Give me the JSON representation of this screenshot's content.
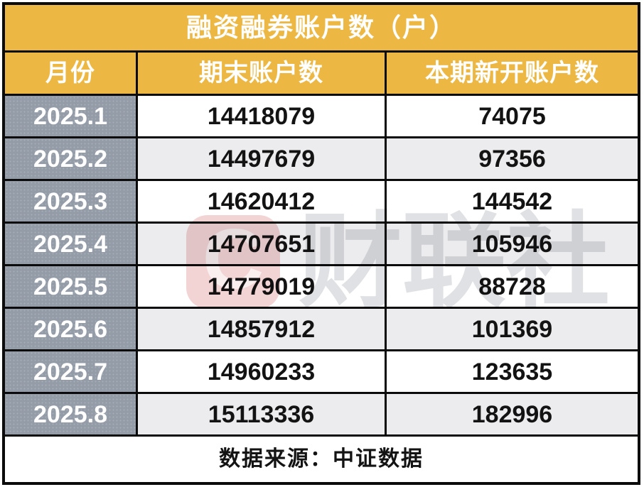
{
  "chart_data": {
    "type": "table",
    "title": "融资融券账户数（户）",
    "columns": [
      "月份",
      "期末账户数",
      "本期新开账户数"
    ],
    "rows": [
      {
        "month": "2025.1",
        "end": "14418079",
        "new": "74075"
      },
      {
        "month": "2025.2",
        "end": "14497679",
        "new": "97356"
      },
      {
        "month": "2025.3",
        "end": "14620412",
        "new": "144542"
      },
      {
        "month": "2025.4",
        "end": "14707651",
        "new": "105946"
      },
      {
        "month": "2025.5",
        "end": "14779019",
        "new": "88728"
      },
      {
        "month": "2025.6",
        "end": "14857912",
        "new": "101369"
      },
      {
        "month": "2025.7",
        "end": "14960233",
        "new": "123635"
      },
      {
        "month": "2025.8",
        "end": "15113336",
        "new": "182996"
      }
    ],
    "source_note": "数据来源：中证数据"
  },
  "watermark": {
    "logo_letter": "C",
    "brand_text": "财联社"
  },
  "colors": {
    "header_yellow": "#ECB843",
    "month_column_gray": "#949CA8",
    "alt_row_gray": "#ECECEE",
    "grid_line_black": "#0B0B0B",
    "number_text": "#131313",
    "header_text": "#FFFFFF",
    "watermark_pink": "#F2D4D4",
    "watermark_gray": "#E0E1E4"
  }
}
